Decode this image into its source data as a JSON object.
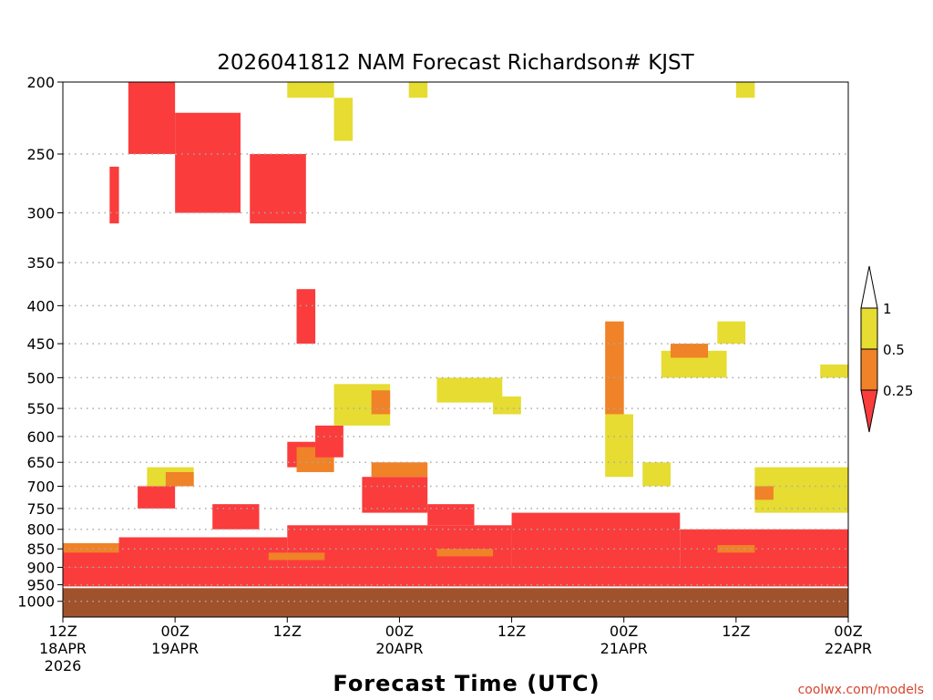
{
  "chart_data": {
    "type": "heatmap",
    "title": "2026041812 NAM Forecast Richardson# KJST",
    "xlabel": "Forecast Time (UTC)",
    "ylabel": "",
    "credit": "coolwx.com/models",
    "x_range_hours": [
      0,
      84
    ],
    "y_range_hPa": [
      1050,
      200
    ],
    "y_ticks": [
      200,
      250,
      300,
      350,
      400,
      450,
      500,
      550,
      600,
      650,
      700,
      750,
      800,
      850,
      900,
      950,
      1000
    ],
    "x_ticks": [
      {
        "hour": 0,
        "line1": "12Z",
        "line2": "18APR",
        "line3": "2026"
      },
      {
        "hour": 12,
        "line1": "00Z",
        "line2": "19APR",
        "line3": ""
      },
      {
        "hour": 24,
        "line1": "12Z",
        "line2": "",
        "line3": ""
      },
      {
        "hour": 36,
        "line1": "00Z",
        "line2": "20APR",
        "line3": ""
      },
      {
        "hour": 48,
        "line1": "12Z",
        "line2": "",
        "line3": ""
      },
      {
        "hour": 60,
        "line1": "00Z",
        "line2": "21APR",
        "line3": ""
      },
      {
        "hour": 72,
        "line1": "12Z",
        "line2": "",
        "line3": ""
      },
      {
        "hour": 84,
        "line1": "00Z",
        "line2": "22APR",
        "line3": ""
      }
    ],
    "legend": {
      "levels": [
        "1",
        "0.5",
        "0.25"
      ],
      "bins": [
        {
          "label": "> 1",
          "color": "#ffffff"
        },
        {
          "label": "0.5 - 1",
          "color": "#e6dc32"
        },
        {
          "label": "0.25 - 0.5",
          "color": "#f08228"
        },
        {
          "label": "< 0.25",
          "color": "#fa3c3c"
        }
      ]
    },
    "colors": {
      "red": "#fa3c3c",
      "orange": "#f08228",
      "yellow": "#e6dc32",
      "ground": "#a0522d",
      "grid": "#aaaaaa"
    },
    "surface_pressure_hPa": 960,
    "regions": [
      {
        "cat": "red",
        "x": [
          0,
          84
        ],
        "p": [
          900,
          955
        ]
      },
      {
        "cat": "red",
        "x": [
          0,
          12
        ],
        "p": [
          840,
          900
        ]
      },
      {
        "cat": "orange",
        "x": [
          0,
          10
        ],
        "p": [
          835,
          860
        ]
      },
      {
        "cat": "red",
        "x": [
          6,
          24
        ],
        "p": [
          820,
          900
        ]
      },
      {
        "cat": "red",
        "x": [
          24,
          48
        ],
        "p": [
          790,
          900
        ]
      },
      {
        "cat": "red",
        "x": [
          48,
          66
        ],
        "p": [
          760,
          900
        ]
      },
      {
        "cat": "red",
        "x": [
          66,
          84
        ],
        "p": [
          800,
          900
        ]
      },
      {
        "cat": "orange",
        "x": [
          22,
          28
        ],
        "p": [
          860,
          880
        ]
      },
      {
        "cat": "orange",
        "x": [
          40,
          46
        ],
        "p": [
          850,
          870
        ]
      },
      {
        "cat": "orange",
        "x": [
          70,
          74
        ],
        "p": [
          840,
          860
        ]
      },
      {
        "cat": "red",
        "x": [
          8,
          12
        ],
        "p": [
          700,
          750
        ]
      },
      {
        "cat": "red",
        "x": [
          16,
          21
        ],
        "p": [
          740,
          800
        ]
      },
      {
        "cat": "yellow",
        "x": [
          9,
          14
        ],
        "p": [
          660,
          700
        ]
      },
      {
        "cat": "orange",
        "x": [
          11,
          14
        ],
        "p": [
          670,
          700
        ]
      },
      {
        "cat": "red",
        "x": [
          32,
          39
        ],
        "p": [
          680,
          760
        ]
      },
      {
        "cat": "orange",
        "x": [
          33,
          39
        ],
        "p": [
          650,
          680
        ]
      },
      {
        "cat": "red",
        "x": [
          39,
          44
        ],
        "p": [
          740,
          790
        ]
      },
      {
        "cat": "red",
        "x": [
          24,
          27
        ],
        "p": [
          610,
          660
        ]
      },
      {
        "cat": "orange",
        "x": [
          25,
          29
        ],
        "p": [
          620,
          670
        ]
      },
      {
        "cat": "red",
        "x": [
          27,
          30
        ],
        "p": [
          580,
          640
        ]
      },
      {
        "cat": "yellow",
        "x": [
          29,
          35
        ],
        "p": [
          510,
          580
        ]
      },
      {
        "cat": "orange",
        "x": [
          33,
          35
        ],
        "p": [
          520,
          560
        ]
      },
      {
        "cat": "red",
        "x": [
          7,
          12
        ],
        "p": [
          200,
          250
        ]
      },
      {
        "cat": "red",
        "x": [
          12,
          19
        ],
        "p": [
          220,
          300
        ]
      },
      {
        "cat": "red",
        "x": [
          20,
          26
        ],
        "p": [
          250,
          310
        ]
      },
      {
        "cat": "red",
        "x": [
          5,
          6
        ],
        "p": [
          260,
          310
        ]
      },
      {
        "cat": "red",
        "x": [
          25,
          27
        ],
        "p": [
          380,
          450
        ]
      },
      {
        "cat": "yellow",
        "x": [
          24,
          29
        ],
        "p": [
          200,
          210
        ]
      },
      {
        "cat": "yellow",
        "x": [
          37,
          39
        ],
        "p": [
          200,
          210
        ]
      },
      {
        "cat": "yellow",
        "x": [
          72,
          74
        ],
        "p": [
          200,
          210
        ]
      },
      {
        "cat": "yellow",
        "x": [
          29,
          31
        ],
        "p": [
          210,
          240
        ]
      },
      {
        "cat": "orange",
        "x": [
          58,
          60
        ],
        "p": [
          420,
          560
        ]
      },
      {
        "cat": "yellow",
        "x": [
          58,
          61
        ],
        "p": [
          560,
          680
        ]
      },
      {
        "cat": "yellow",
        "x": [
          62,
          65
        ],
        "p": [
          650,
          700
        ]
      },
      {
        "cat": "yellow",
        "x": [
          64,
          71
        ],
        "p": [
          460,
          500
        ]
      },
      {
        "cat": "orange",
        "x": [
          65,
          69
        ],
        "p": [
          450,
          470
        ]
      },
      {
        "cat": "yellow",
        "x": [
          70,
          73
        ],
        "p": [
          420,
          450
        ]
      },
      {
        "cat": "yellow",
        "x": [
          40,
          47
        ],
        "p": [
          500,
          540
        ]
      },
      {
        "cat": "yellow",
        "x": [
          46,
          49
        ],
        "p": [
          530,
          560
        ]
      },
      {
        "cat": "yellow",
        "x": [
          81,
          84
        ],
        "p": [
          480,
          500
        ]
      },
      {
        "cat": "yellow",
        "x": [
          74,
          84
        ],
        "p": [
          660,
          760
        ]
      },
      {
        "cat": "orange",
        "x": [
          74,
          76
        ],
        "p": [
          700,
          730
        ]
      }
    ]
  }
}
